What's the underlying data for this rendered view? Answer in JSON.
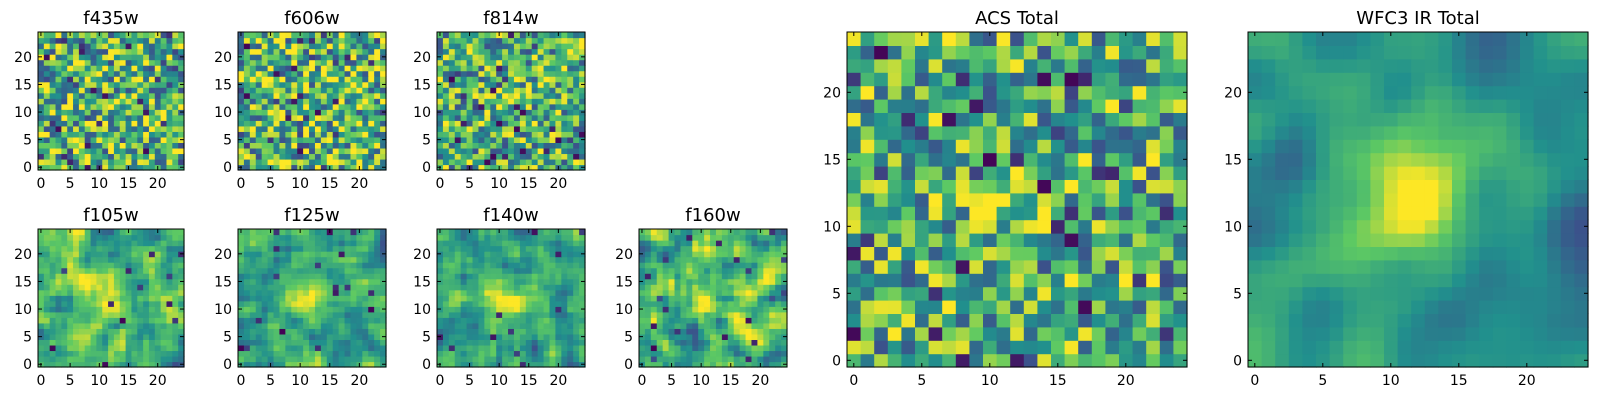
{
  "colormap": {
    "name": "viridis",
    "stops": [
      "#440154",
      "#3b528b",
      "#21908d",
      "#5dc963",
      "#fde725"
    ]
  },
  "chart_data": [
    {
      "type": "heatmap",
      "title": "f435w",
      "grid_size": 25,
      "xticks": [
        0,
        5,
        10,
        15,
        20
      ],
      "yticks": [
        0,
        5,
        10,
        15,
        20
      ],
      "xlim": [
        0,
        24
      ],
      "ylim": [
        0,
        24
      ],
      "values": [],
      "style": "noise",
      "seed": 11,
      "center_blob": 0.0
    },
    {
      "type": "heatmap",
      "title": "f606w",
      "grid_size": 25,
      "xticks": [
        0,
        5,
        10,
        15,
        20
      ],
      "yticks": [
        0,
        5,
        10,
        15,
        20
      ],
      "xlim": [
        0,
        24
      ],
      "ylim": [
        0,
        24
      ],
      "values": [],
      "style": "noise",
      "seed": 23,
      "center_blob": 0.0
    },
    {
      "type": "heatmap",
      "title": "f814w",
      "grid_size": 25,
      "xticks": [
        0,
        5,
        10,
        15,
        20
      ],
      "yticks": [
        0,
        5,
        10,
        15,
        20
      ],
      "xlim": [
        0,
        24
      ],
      "ylim": [
        0,
        24
      ],
      "values": [],
      "style": "noise",
      "seed": 37,
      "center_blob": 0.15
    },
    {
      "type": "heatmap",
      "title": "f105w",
      "grid_size": 25,
      "xticks": [
        0,
        5,
        10,
        15,
        20
      ],
      "yticks": [
        0,
        5,
        10,
        15,
        20
      ],
      "xlim": [
        0,
        24
      ],
      "ylim": [
        0,
        24
      ],
      "values": [],
      "style": "smooth",
      "seed": 41,
      "center_blob": 0.35
    },
    {
      "type": "heatmap",
      "title": "f125w",
      "grid_size": 25,
      "xticks": [
        0,
        5,
        10,
        15,
        20
      ],
      "yticks": [
        0,
        5,
        10,
        15,
        20
      ],
      "xlim": [
        0,
        24
      ],
      "ylim": [
        0,
        24
      ],
      "values": [],
      "style": "smooth",
      "seed": 53,
      "center_blob": 0.35
    },
    {
      "type": "heatmap",
      "title": "f140w",
      "grid_size": 25,
      "xticks": [
        0,
        5,
        10,
        15,
        20
      ],
      "yticks": [
        0,
        5,
        10,
        15,
        20
      ],
      "xlim": [
        0,
        24
      ],
      "ylim": [
        0,
        24
      ],
      "values": [],
      "style": "smooth",
      "seed": 67,
      "center_blob": 0.4
    },
    {
      "type": "heatmap",
      "title": "f160w",
      "grid_size": 25,
      "xticks": [
        0,
        5,
        10,
        15,
        20
      ],
      "yticks": [
        0,
        5,
        10,
        15,
        20
      ],
      "xlim": [
        0,
        24
      ],
      "ylim": [
        0,
        24
      ],
      "values": [],
      "style": "smooth",
      "seed": 79,
      "center_blob": 0.25
    },
    {
      "type": "heatmap",
      "title": "ACS Total",
      "grid_size": 25,
      "xticks": [
        0,
        5,
        10,
        15,
        20
      ],
      "yticks": [
        0,
        5,
        10,
        15,
        20
      ],
      "xlim": [
        0,
        24
      ],
      "ylim": [
        0,
        24
      ],
      "values": [],
      "style": "noise",
      "seed": 97,
      "center_blob": 0.2
    },
    {
      "type": "heatmap",
      "title": "WFC3 IR Total",
      "grid_size": 25,
      "xticks": [
        0,
        5,
        10,
        15,
        20
      ],
      "yticks": [
        0,
        5,
        10,
        15,
        20
      ],
      "xlim": [
        0,
        24
      ],
      "ylim": [
        0,
        24
      ],
      "values": [],
      "style": "smooth_strong",
      "seed": 113,
      "center_blob": 0.85
    }
  ]
}
